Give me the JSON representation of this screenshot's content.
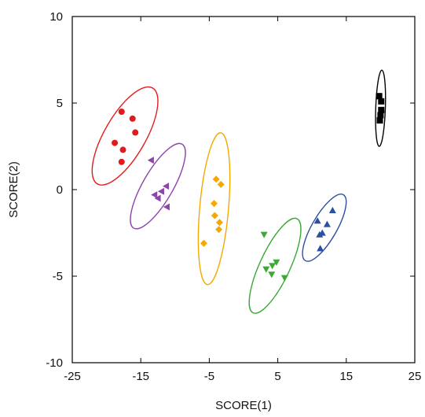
{
  "chart_data": {
    "type": "scatter",
    "xlabel": "SCORE(1)",
    "ylabel": "SCORE(2)",
    "xlim": [
      -25,
      25
    ],
    "ylim": [
      -10,
      10
    ],
    "x_ticks": [
      -25,
      -15,
      -5,
      5,
      15,
      25
    ],
    "y_ticks": [
      -10,
      -5,
      0,
      5,
      10
    ],
    "x_tick_labels": [
      "-25",
      "-15",
      "-5",
      "5",
      "15",
      "25"
    ],
    "y_tick_labels": [
      "-10",
      "-5",
      "0",
      "5",
      "10"
    ],
    "grid": false,
    "legend": "none",
    "series": [
      {
        "color": "#e31a1c",
        "marker": "circle",
        "points": [
          [
            -17.8,
            4.5
          ],
          [
            -16.2,
            4.1
          ],
          [
            -15.8,
            3.3
          ],
          [
            -18.8,
            2.7
          ],
          [
            -17.6,
            2.3
          ],
          [
            -17.8,
            1.6
          ]
        ],
        "ellipse": {
          "cx": -17.3,
          "cy": 3.1,
          "rx": 3.0,
          "ry": 3.2,
          "angle_deg": -60
        }
      },
      {
        "color": "#8e44ad",
        "marker": "triangle-left",
        "points": [
          [
            -13.5,
            1.7
          ],
          [
            -11.3,
            0.2
          ],
          [
            -12.0,
            -0.1
          ],
          [
            -13.0,
            -0.3
          ],
          [
            -11.2,
            -1.0
          ],
          [
            -12.5,
            -0.5
          ]
        ],
        "ellipse": {
          "cx": -12.5,
          "cy": 0.2,
          "rx": 2.2,
          "ry": 2.8,
          "angle_deg": -60
        }
      },
      {
        "color": "#f5a800",
        "marker": "diamond",
        "points": [
          [
            -4.0,
            0.6
          ],
          [
            -3.3,
            0.3
          ],
          [
            -4.3,
            -0.8
          ],
          [
            -4.2,
            -1.5
          ],
          [
            -3.5,
            -1.9
          ],
          [
            -3.6,
            -2.3
          ],
          [
            -5.8,
            -3.1
          ]
        ],
        "ellipse": {
          "cx": -4.3,
          "cy": -1.1,
          "rx": 2.1,
          "ry": 4.4,
          "angle_deg": -85
        }
      },
      {
        "color": "#3aaa35",
        "marker": "triangle-down",
        "points": [
          [
            3.0,
            -2.6
          ],
          [
            4.8,
            -4.2
          ],
          [
            4.2,
            -4.4
          ],
          [
            3.3,
            -4.6
          ],
          [
            4.1,
            -4.9
          ],
          [
            6.0,
            -5.1
          ]
        ],
        "ellipse": {
          "cx": 4.6,
          "cy": -4.4,
          "rx": 2.2,
          "ry": 3.0,
          "angle_deg": -65
        }
      },
      {
        "color": "#2c4ea3",
        "marker": "triangle-up",
        "points": [
          [
            13.0,
            -1.2
          ],
          [
            10.8,
            -1.8
          ],
          [
            12.2,
            -2.0
          ],
          [
            11.5,
            -2.5
          ],
          [
            11.1,
            -2.6
          ],
          [
            11.2,
            -3.4
          ]
        ],
        "ellipse": {
          "cx": 11.8,
          "cy": -2.2,
          "rx": 1.8,
          "ry": 2.2,
          "angle_deg": -60
        }
      },
      {
        "color": "#000000",
        "marker": "square",
        "points": [
          [
            19.8,
            5.4
          ],
          [
            20.1,
            5.1
          ],
          [
            20.1,
            4.6
          ],
          [
            20.0,
            4.3
          ],
          [
            19.9,
            4.0
          ]
        ],
        "ellipse": {
          "cx": 20.0,
          "cy": 4.7,
          "rx": 0.7,
          "ry": 2.2,
          "angle_deg": -88
        }
      }
    ]
  }
}
